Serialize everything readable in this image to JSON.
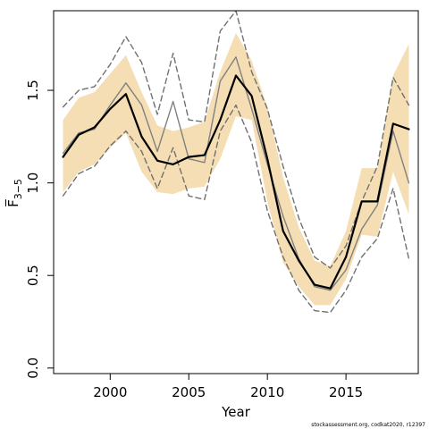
{
  "chart_data": {
    "type": "line",
    "title": "",
    "xlabel": "Year",
    "ylabel": "F̅",
    "ylabel_subscript": "3−5",
    "xlim": [
      1996.4,
      2019.6
    ],
    "ylim": [
      -0.03,
      1.93
    ],
    "x_ticks": [
      2000,
      2005,
      2010,
      2015
    ],
    "y_ticks": [
      0.0,
      0.5,
      1.0,
      1.5
    ],
    "x_tick_labels": [
      "2000",
      "2005",
      "2010",
      "2015"
    ],
    "y_tick_labels": [
      "0.0",
      "0.5",
      "1.0",
      "1.5"
    ],
    "grid": false,
    "legend": "none",
    "x": [
      1997,
      1998,
      1999,
      2000,
      2001,
      2002,
      2003,
      2004,
      2005,
      2006,
      2007,
      2008,
      2009,
      2010,
      2011,
      2012,
      2013,
      2014,
      2015,
      2016,
      2017,
      2018,
      2019
    ],
    "series": [
      {
        "role": "confidence-band-upper",
        "color": "#f5deb3",
        "values": [
          1.34,
          1.46,
          1.49,
          1.59,
          1.69,
          1.49,
          1.31,
          1.28,
          1.3,
          1.33,
          1.6,
          1.81,
          1.66,
          1.41,
          1.03,
          0.76,
          0.58,
          0.55,
          0.74,
          1.08,
          1.08,
          1.58,
          1.75
        ]
      },
      {
        "role": "confidence-band-lower",
        "color": "#f5deb3",
        "values": [
          0.95,
          1.06,
          1.1,
          1.19,
          1.27,
          1.06,
          0.95,
          0.94,
          0.97,
          0.98,
          1.13,
          1.36,
          1.34,
          0.9,
          0.57,
          0.44,
          0.34,
          0.34,
          0.48,
          0.72,
          0.71,
          1.06,
          0.83
        ]
      },
      {
        "role": "estimate",
        "color": "#000000",
        "style": "solid",
        "width": 2.2,
        "values": [
          1.14,
          1.26,
          1.3,
          1.4,
          1.48,
          1.25,
          1.12,
          1.1,
          1.14,
          1.15,
          1.34,
          1.58,
          1.47,
          1.13,
          0.74,
          0.58,
          0.45,
          0.43,
          0.6,
          0.9,
          0.9,
          1.32,
          1.29
        ]
      },
      {
        "role": "secondary-estimate",
        "color": "#808080",
        "style": "solid",
        "width": 1.4,
        "values": [
          1.16,
          1.27,
          1.29,
          1.42,
          1.54,
          1.42,
          1.17,
          1.44,
          1.13,
          1.11,
          1.55,
          1.68,
          1.4,
          1.1,
          0.82,
          0.59,
          0.44,
          0.42,
          0.53,
          0.75,
          0.88,
          1.28,
          1.0
        ]
      },
      {
        "role": "upper-dashed",
        "color": "#707070",
        "style": "dashed",
        "width": 1.4,
        "values": [
          1.41,
          1.5,
          1.52,
          1.64,
          1.79,
          1.65,
          1.37,
          1.7,
          1.34,
          1.33,
          1.82,
          1.93,
          1.6,
          1.4,
          1.09,
          0.81,
          0.6,
          0.54,
          0.66,
          0.9,
          1.09,
          1.57,
          1.42
        ]
      },
      {
        "role": "lower-dashed",
        "color": "#707070",
        "style": "dashed",
        "width": 1.4,
        "values": [
          0.93,
          1.05,
          1.09,
          1.2,
          1.28,
          1.17,
          0.97,
          1.19,
          0.93,
          0.91,
          1.28,
          1.42,
          1.22,
          0.85,
          0.6,
          0.42,
          0.31,
          0.3,
          0.42,
          0.6,
          0.7,
          0.97,
          0.59
        ]
      }
    ]
  },
  "credit_text": "stockassessment.org, codkat2020, r12397"
}
